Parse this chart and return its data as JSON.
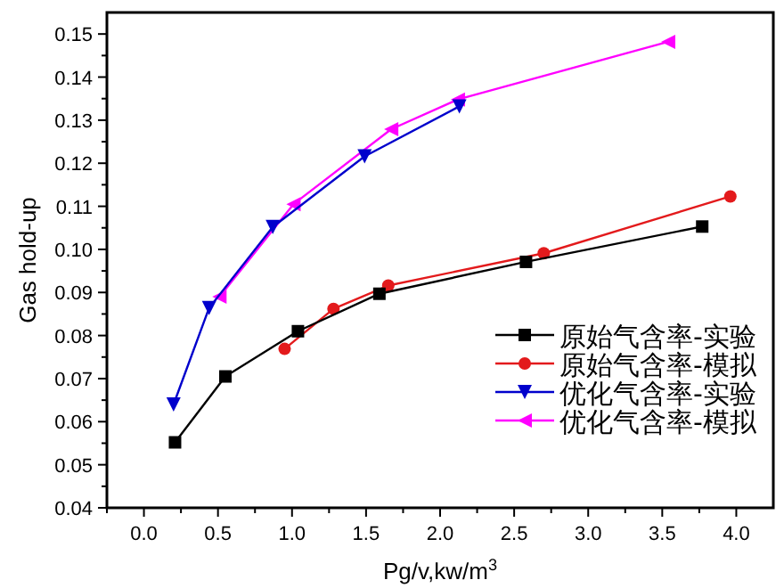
{
  "chart_data": {
    "type": "line",
    "xlabel": "Pg/v,kw/m$^{3}$",
    "ylabel": "Gas hold-up",
    "xlim": [
      -0.25,
      4.25
    ],
    "ylim": [
      0.04,
      0.155
    ],
    "xticks": [
      {
        "value": 0,
        "label": "0.0"
      },
      {
        "value": 0.5,
        "label": "0.5"
      },
      {
        "value": 1,
        "label": "1.0"
      },
      {
        "value": 1.5,
        "label": "1.5"
      },
      {
        "value": 2,
        "label": "2.0"
      },
      {
        "value": 2.5,
        "label": "2.5"
      },
      {
        "value": 3,
        "label": "3.0"
      },
      {
        "value": 3.5,
        "label": "3.5"
      },
      {
        "value": 4,
        "label": "4.0"
      }
    ],
    "yticks": [
      {
        "value": 0.04,
        "label": "0.04"
      },
      {
        "value": 0.05,
        "label": "0.05"
      },
      {
        "value": 0.06,
        "label": "0.06"
      },
      {
        "value": 0.07,
        "label": "0.07"
      },
      {
        "value": 0.08,
        "label": "0.08"
      },
      {
        "value": 0.09,
        "label": "0.09"
      },
      {
        "value": 0.1,
        "label": "0.10"
      },
      {
        "value": 0.11,
        "label": "0.11"
      },
      {
        "value": 0.12,
        "label": "0.12"
      },
      {
        "value": 0.13,
        "label": "0.13"
      },
      {
        "value": 0.14,
        "label": "0.14"
      },
      {
        "value": 0.15,
        "label": "0.15"
      }
    ],
    "legend": "right",
    "grid": false,
    "series": [
      {
        "name": "原始气含率-实验",
        "color": "#000000",
        "marker": "square",
        "x": [
          0.21,
          0.55,
          1.04,
          1.59,
          2.58,
          3.77
        ],
        "values": [
          0.0552,
          0.0705,
          0.081,
          0.0897,
          0.0971,
          0.1053
        ]
      },
      {
        "name": "原始气含率-模拟",
        "color": "#e31a1c",
        "marker": "circle",
        "x": [
          0.95,
          1.28,
          1.65,
          2.7,
          3.96
        ],
        "values": [
          0.0769,
          0.0862,
          0.0916,
          0.0991,
          0.1123
        ]
      },
      {
        "name": "优化气含率-实验",
        "color": "#0000cc",
        "marker": "triangle-down",
        "x": [
          0.2,
          0.44,
          0.87,
          1.49,
          2.13
        ],
        "values": [
          0.064,
          0.0864,
          0.1052,
          0.1216,
          0.1332
        ]
      },
      {
        "name": "优化气含率-模拟",
        "color": "#ff00ff",
        "marker": "triangle-left",
        "x": [
          0.51,
          1.01,
          1.67,
          2.12,
          3.54
        ],
        "values": [
          0.089,
          0.1105,
          0.1279,
          0.1348,
          0.1482
        ]
      }
    ]
  }
}
